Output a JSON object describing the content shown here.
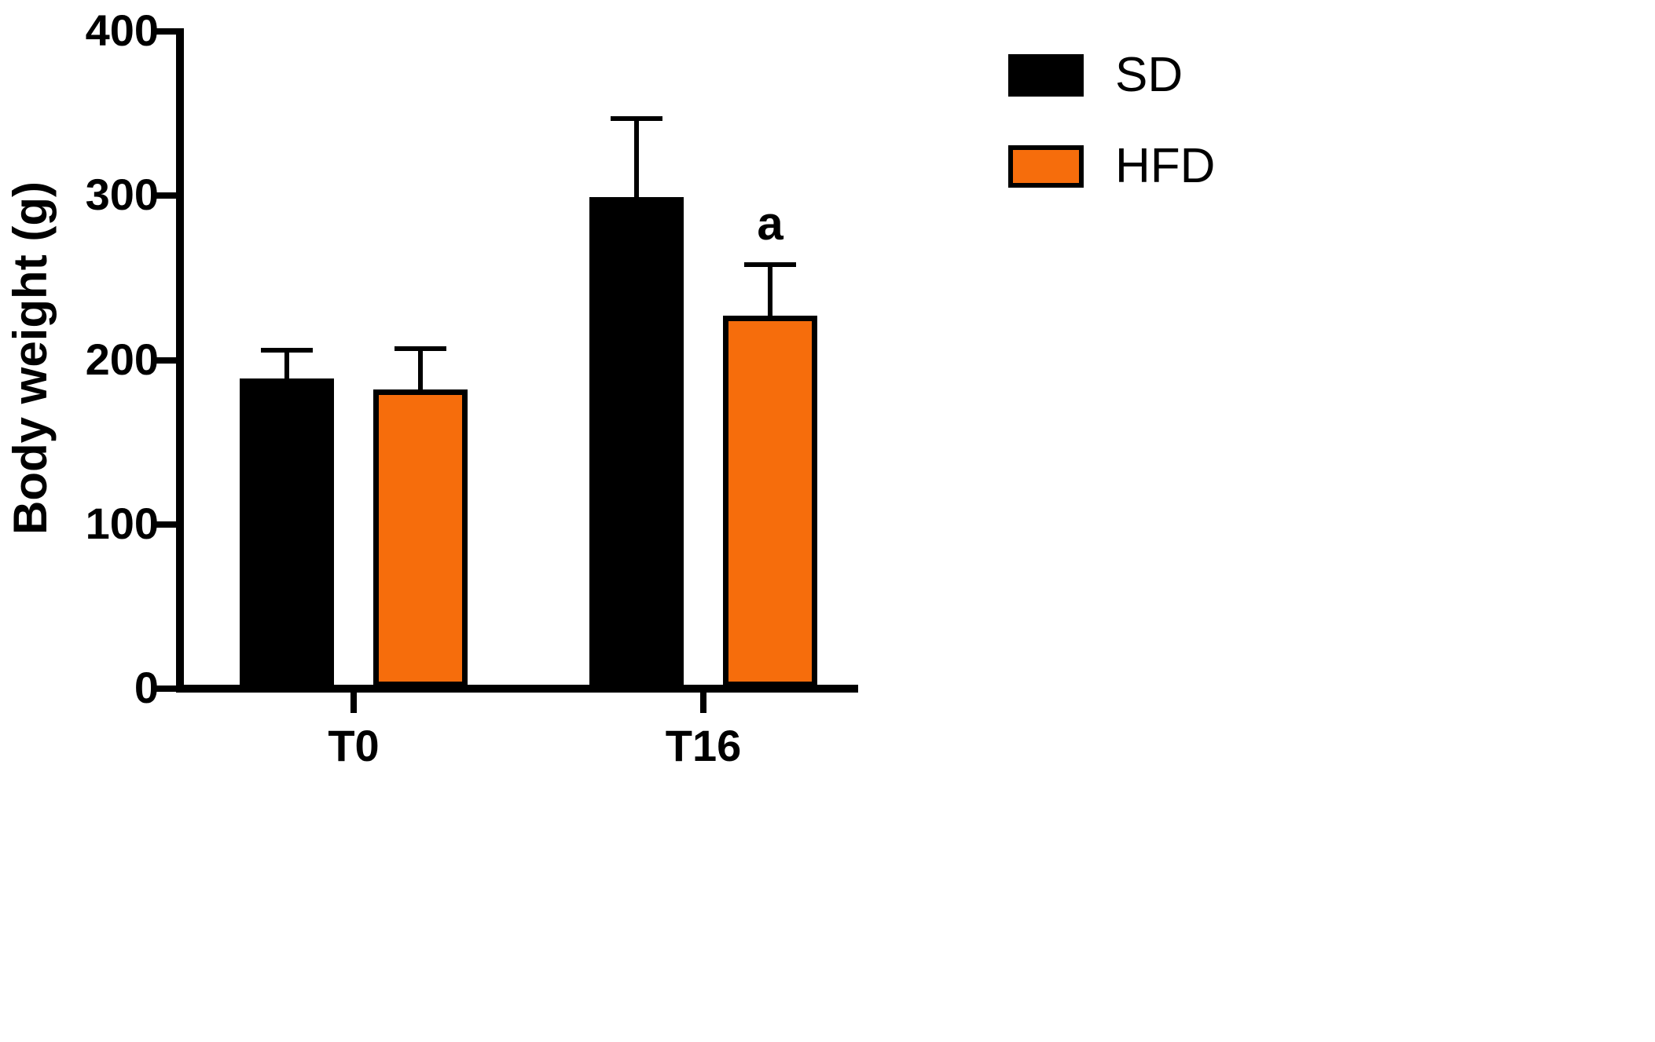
{
  "chart_data": {
    "type": "bar",
    "title": "",
    "ylabel": "Body weight (g)",
    "xlabel": "",
    "ylim": [
      0,
      400
    ],
    "yticks": [
      0,
      100,
      200,
      300,
      400
    ],
    "categories": [
      "T0",
      "T16"
    ],
    "series": [
      {
        "name": "SD",
        "color": "#000000",
        "outline": false,
        "values": [
          189,
          299
        ],
        "errors": [
          17,
          48
        ]
      },
      {
        "name": "HFD",
        "color": "#F66D0C",
        "outline": true,
        "values": [
          182,
          227
        ],
        "errors": [
          25,
          31
        ]
      }
    ],
    "annotations": [
      {
        "text": "a",
        "series": "HFD",
        "category": "T16"
      }
    ],
    "legend_position": "top-right",
    "grid": false
  }
}
